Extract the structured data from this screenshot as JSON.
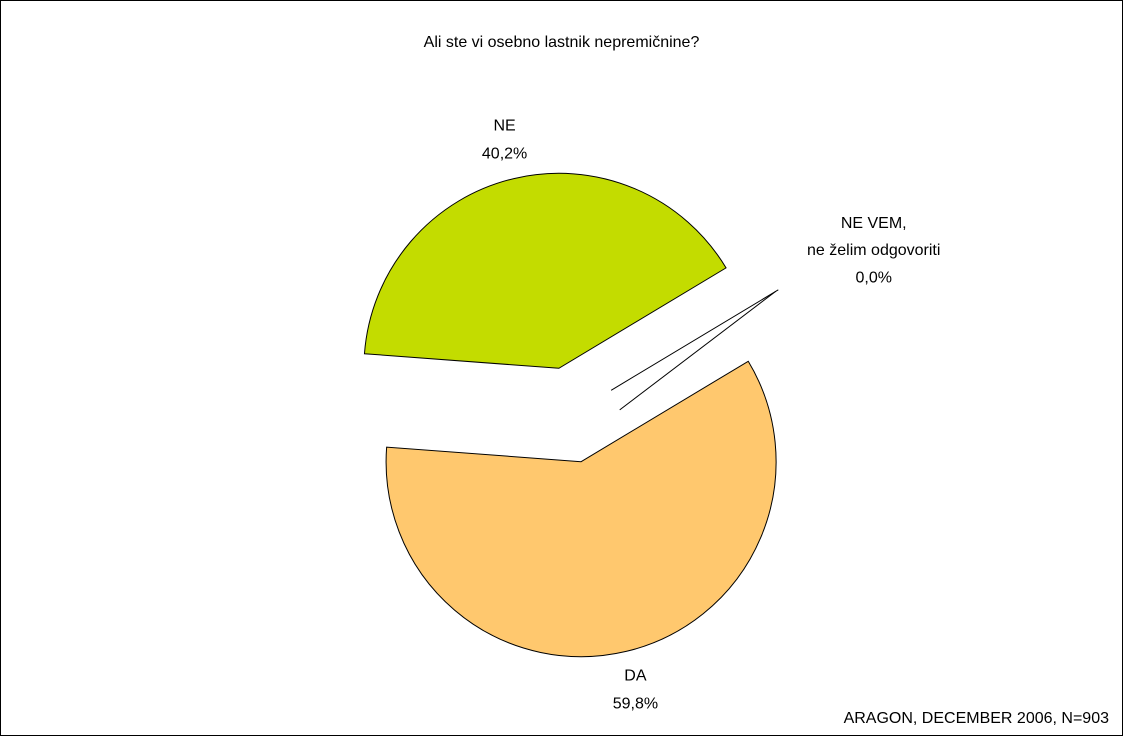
{
  "chart_data": {
    "type": "pie",
    "title": "Ali ste vi osebno lastnik nepremičnine?",
    "source": "ARAGON, DECEMBER 2006, N=903",
    "categories": [
      "DA",
      "NE",
      "NE VEM,\nne želim odgovoriti"
    ],
    "values": [
      59.8,
      40.2,
      0.0
    ],
    "value_labels": [
      "59,8%",
      "40,2%",
      "0,0%"
    ],
    "colors": [
      "#ffc86e",
      "#c3dc00",
      "#6666cc"
    ]
  }
}
